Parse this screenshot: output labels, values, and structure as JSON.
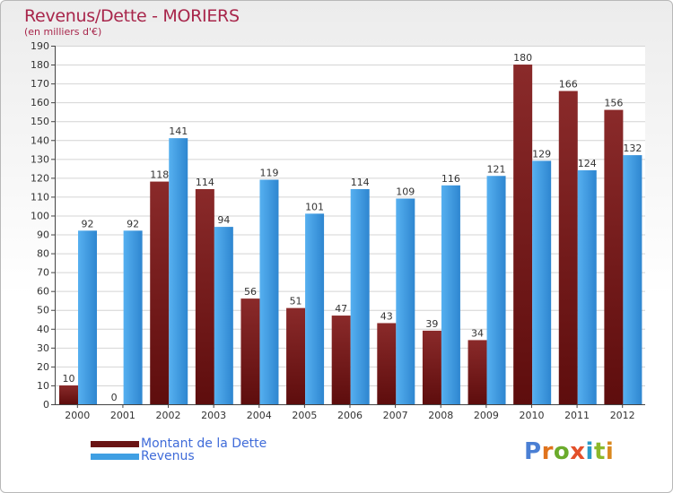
{
  "colors": {
    "dette": "#7a1e1e",
    "revenus": "#3f9fe3",
    "title": "#a8264b",
    "legend_text": "#3f6bd9"
  },
  "legend": {
    "dette_label": "Montant de la Dette",
    "revenus_label": "Revenus"
  },
  "logo": {
    "letters": [
      "P",
      "r",
      "o",
      "x",
      "i",
      "t",
      "i"
    ],
    "colors": [
      "#4a7fd4",
      "#e0731c",
      "#6bab2c",
      "#e3502a",
      "#2a9ac8",
      "#8cb82a",
      "#d9881f"
    ]
  },
  "chart_data": {
    "type": "bar",
    "title": "Revenus/Dette - MORIERS",
    "subtitle": "(en milliers d'€)",
    "xlabel": "",
    "ylabel": "",
    "ylim": [
      0,
      190
    ],
    "ytick_step": 10,
    "grid": true,
    "categories": [
      "2000",
      "2001",
      "2002",
      "2003",
      "2004",
      "2005",
      "2006",
      "2007",
      "2008",
      "2009",
      "2010",
      "2011",
      "2012"
    ],
    "series": [
      {
        "name": "Montant de la Dette",
        "values": [
          10,
          0,
          118,
          114,
          56,
          51,
          47,
          43,
          39,
          34,
          180,
          166,
          156
        ]
      },
      {
        "name": "Revenus",
        "values": [
          92,
          92,
          141,
          94,
          119,
          101,
          114,
          109,
          116,
          121,
          129,
          124,
          132
        ]
      }
    ]
  }
}
